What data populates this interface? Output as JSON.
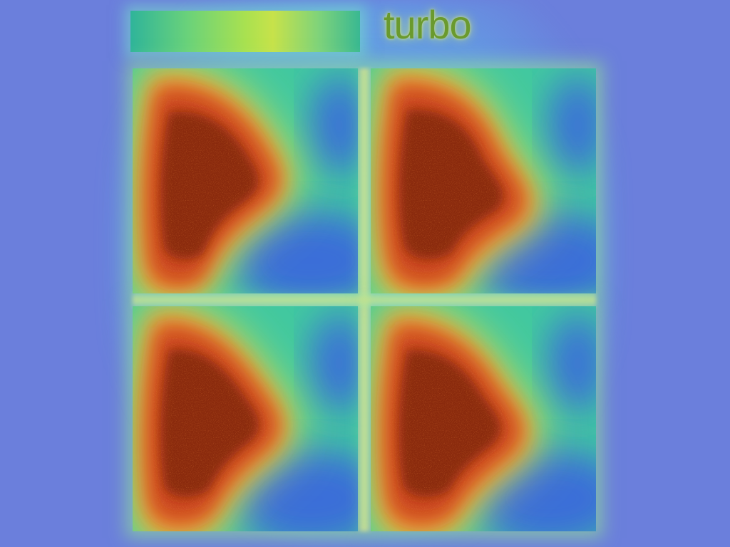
{
  "colormap": {
    "label": "turbo"
  },
  "colors": {
    "background": "#6b7fdc",
    "hot_core": "#8a2a10",
    "hot": "#c8431a",
    "warm": "#f08a30",
    "mid": "#d6e04a",
    "cool": "#41c8a0",
    "cold": "#3a6ed8"
  },
  "panels": [
    {
      "id": "tl",
      "name": "heatmap-panel-top-left"
    },
    {
      "id": "tr",
      "name": "heatmap-panel-top-right"
    },
    {
      "id": "bl",
      "name": "heatmap-panel-bottom-left"
    },
    {
      "id": "br",
      "name": "heatmap-panel-bottom-right"
    }
  ]
}
